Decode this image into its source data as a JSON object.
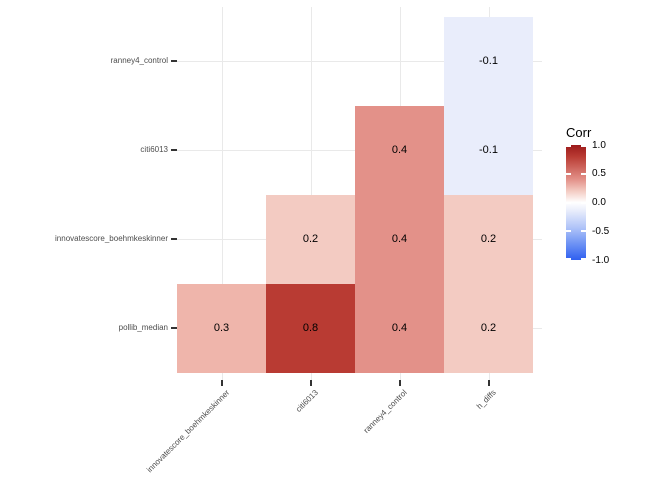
{
  "legend": {
    "title": "Corr",
    "tick_labels": [
      "1.0",
      "0.5",
      "0.0",
      "-0.5",
      "-1.0"
    ],
    "tick_values": [
      1.0,
      0.5,
      0.0,
      -0.5,
      -1.0
    ],
    "gradient_high": "#9C1A1B",
    "gradient_mid": "#FFFFFF",
    "gradient_low": "#2F5FF0"
  },
  "y_axis": {
    "labels_top_to_bottom": [
      "ranney4_control",
      "citi6013",
      "innovatescore_boehmkeskinner",
      "pollib_median"
    ]
  },
  "x_axis": {
    "labels_left_to_right": [
      "innovatescore_boehmkeskinner",
      "citi6013",
      "ranney4_control",
      "h_diffs"
    ]
  },
  "cells": [
    {
      "row": 0,
      "col": 3,
      "label": "-0.1",
      "color": "#E9EDFB"
    },
    {
      "row": 1,
      "col": 2,
      "label": "0.4",
      "color": "#E39189"
    },
    {
      "row": 1,
      "col": 3,
      "label": "-0.1",
      "color": "#E9EDFB"
    },
    {
      "row": 2,
      "col": 1,
      "label": "0.2",
      "color": "#F3CBC2"
    },
    {
      "row": 2,
      "col": 2,
      "label": "0.4",
      "color": "#E39189"
    },
    {
      "row": 2,
      "col": 3,
      "label": "0.2",
      "color": "#F3CBC2"
    },
    {
      "row": 3,
      "col": 0,
      "label": "0.3",
      "color": "#EFB5AB"
    },
    {
      "row": 3,
      "col": 1,
      "label": "0.8",
      "color": "#B93B33"
    },
    {
      "row": 3,
      "col": 2,
      "label": "0.4",
      "color": "#E39189"
    },
    {
      "row": 3,
      "col": 3,
      "label": "0.2",
      "color": "#F3CBC2"
    }
  ],
  "style": {
    "background": "#FFFFFF",
    "gridline_color": "#E9E9E9",
    "axis_text_color": "#4D4D4D",
    "tick_color": "#333333",
    "cell_text_color": "#000000"
  },
  "chart_data": {
    "type": "heatmap",
    "subtype": "correlation-matrix-lower-triangle",
    "title": "",
    "legend_title": "Corr",
    "x_categories": [
      "innovatescore_boehmkeskinner",
      "citi6013",
      "ranney4_control",
      "h_diffs"
    ],
    "y_categories_top_to_bottom": [
      "ranney4_control",
      "citi6013",
      "innovatescore_boehmkeskinner",
      "pollib_median"
    ],
    "values": [
      {
        "y": "ranney4_control",
        "x": "h_diffs",
        "corr": -0.1
      },
      {
        "y": "citi6013",
        "x": "ranney4_control",
        "corr": 0.4
      },
      {
        "y": "citi6013",
        "x": "h_diffs",
        "corr": -0.1
      },
      {
        "y": "innovatescore_boehmkeskinner",
        "x": "citi6013",
        "corr": 0.2
      },
      {
        "y": "innovatescore_boehmkeskinner",
        "x": "ranney4_control",
        "corr": 0.4
      },
      {
        "y": "innovatescore_boehmkeskinner",
        "x": "h_diffs",
        "corr": 0.2
      },
      {
        "y": "pollib_median",
        "x": "innovatescore_boehmkeskinner",
        "corr": 0.3
      },
      {
        "y": "pollib_median",
        "x": "citi6013",
        "corr": 0.8
      },
      {
        "y": "pollib_median",
        "x": "ranney4_control",
        "corr": 0.4
      },
      {
        "y": "pollib_median",
        "x": "h_diffs",
        "corr": 0.2
      }
    ],
    "colorbar": {
      "min": -1.0,
      "max": 1.0,
      "ticks": [
        1.0,
        0.5,
        0.0,
        -0.5,
        -1.0
      ],
      "high_color": "#9C1A1B",
      "mid_color": "#FFFFFF",
      "low_color": "#2F5FF0"
    },
    "grid": true,
    "legend_position": "right"
  }
}
